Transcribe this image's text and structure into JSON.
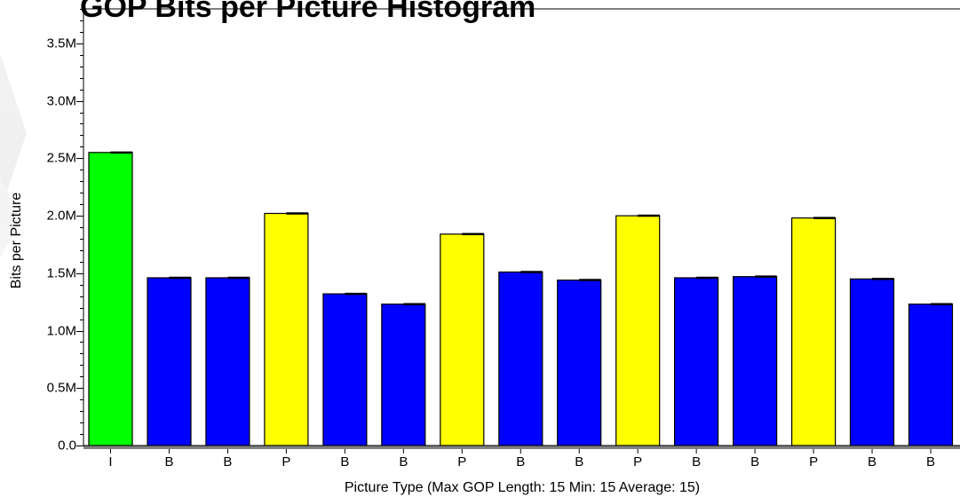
{
  "chart_data": {
    "type": "bar",
    "title": "GOP Bits per Picture Histogram",
    "xlabel": "Picture Type (Max GOP Length: 15 Min: 15 Average: 15)",
    "ylabel": "Bits per Picture",
    "categories": [
      "I",
      "B",
      "B",
      "P",
      "B",
      "B",
      "P",
      "B",
      "B",
      "P",
      "B",
      "B",
      "P",
      "B",
      "B"
    ],
    "values": [
      2550000,
      1460000,
      1460000,
      2020000,
      1320000,
      1230000,
      1840000,
      1510000,
      1440000,
      2000000,
      1460000,
      1470000,
      1980000,
      1450000,
      1230000
    ],
    "ylim": [
      0,
      3800000
    ],
    "yticks": [
      {
        "value": 0,
        "label": "0.0"
      },
      {
        "value": 500000,
        "label": "0.5M"
      },
      {
        "value": 1000000,
        "label": "1.0M"
      },
      {
        "value": 1500000,
        "label": "1.5M"
      },
      {
        "value": 2000000,
        "label": "2.0M"
      },
      {
        "value": 2500000,
        "label": "2.5M"
      },
      {
        "value": 3000000,
        "label": "3.0M"
      },
      {
        "value": 3500000,
        "label": "3.5M"
      }
    ],
    "minor_tick_step": 100000,
    "grid": false,
    "colors": {
      "I": "#00ff00",
      "P": "#ffff00",
      "B": "#0000ff",
      "edge": "#000000",
      "baseline": "#808080"
    }
  }
}
